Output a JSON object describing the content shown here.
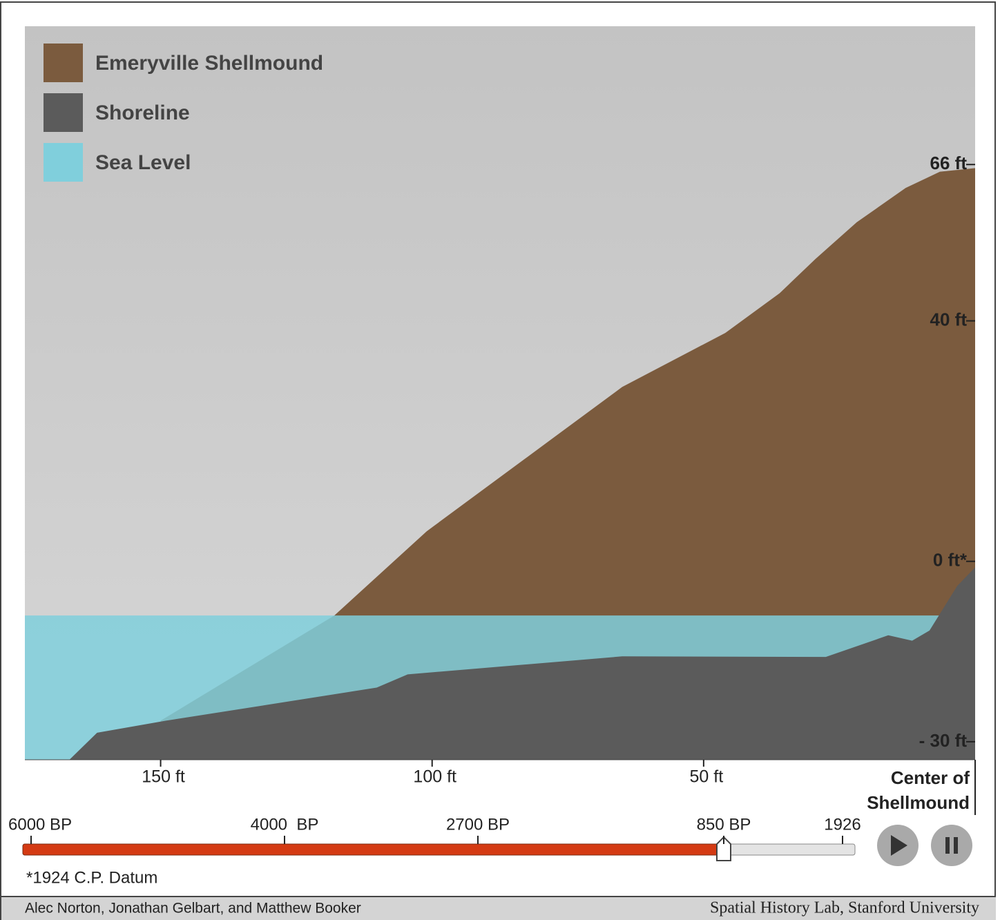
{
  "chart_data": {
    "type": "area",
    "xlim": [
      175,
      0
    ],
    "ylim": [
      -33,
      89
    ],
    "xticks": [
      {
        "value": 150,
        "label": "150 ft"
      },
      {
        "value": 100,
        "label": "100 ft"
      },
      {
        "value": 50,
        "label": "50 ft"
      },
      {
        "value": 0,
        "label": "Center of Shellmound"
      }
    ],
    "yticks": [
      {
        "value": 66,
        "label": "66 ft"
      },
      {
        "value": 40,
        "label": "40 ft"
      },
      {
        "value": 0,
        "label": "0 ft*"
      },
      {
        "value": -30,
        "label": "- 30 ft"
      }
    ],
    "legend": "top-left",
    "series": [
      {
        "name": "Emeryville Shellmound",
        "color": "#7b5b3e",
        "x": [
          150,
          118,
          101,
          83,
          65,
          46,
          36,
          29.4,
          21.8,
          12.8,
          6.5,
          0
        ],
        "values": [
          -26.5,
          -9,
          5,
          17,
          29,
          38,
          44.6,
          50.3,
          56.4,
          62.1,
          64.8,
          65.4
        ]
      },
      {
        "name": "Sea Level",
        "color": "#80cfdc",
        "x": [
          175,
          0
        ],
        "values": [
          -9,
          -9
        ]
      },
      {
        "name": "Shoreline",
        "color": "#5b5b5b",
        "x": [
          166.8,
          161.7,
          149,
          110.2,
          104.5,
          65,
          27.5,
          16,
          11.6,
          8.4,
          3.3,
          0
        ],
        "values": [
          -33,
          -28.5,
          -26.5,
          -21,
          -18.8,
          -15.8,
          -15.9,
          -12.3,
          -13.2,
          -11.5,
          -4.1,
          -1
        ]
      }
    ],
    "note": "*1924 C.P. Datum"
  },
  "timeline": {
    "labels": [
      "6000 BP",
      "4000  BP",
      "2700 BP",
      "850 BP",
      "1926"
    ]
  },
  "footer": {
    "left": "Alec Norton, Jonathan Gelbart, and Matthew Booker",
    "right": "Spatial History Lab, Stanford University"
  }
}
